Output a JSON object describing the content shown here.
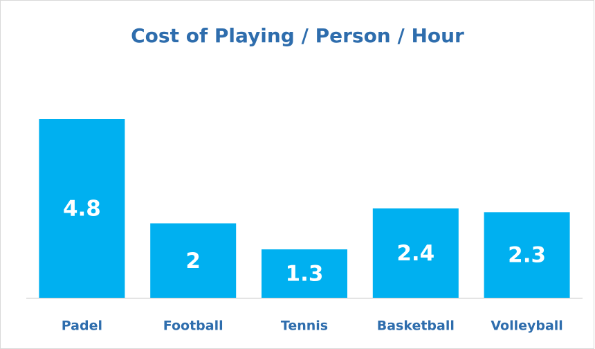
{
  "chart_data": {
    "type": "bar",
    "title": "Cost of Playing / Person / Hour",
    "categories": [
      "Padel",
      "Football",
      "Tennis",
      "Basketball",
      "Volleyball"
    ],
    "values": [
      4.8,
      2,
      1.3,
      2.4,
      2.3
    ],
    "color": "#00b0f0"
  }
}
